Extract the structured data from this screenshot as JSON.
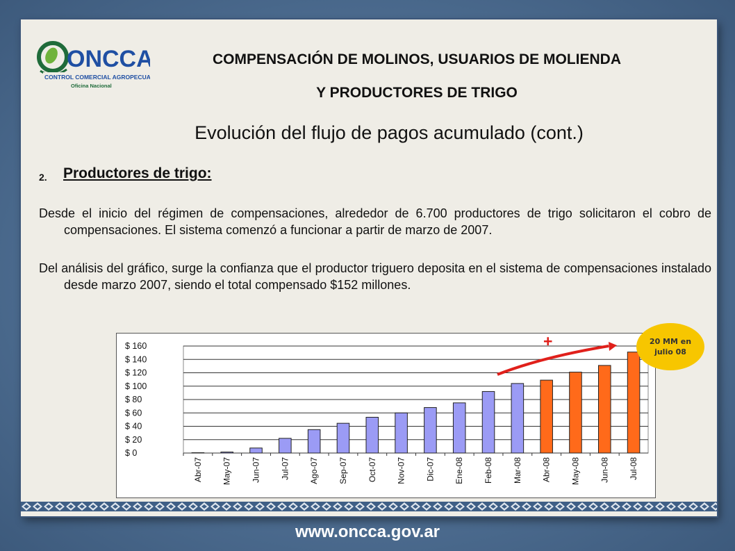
{
  "header": {
    "logo_text": "ONCCA",
    "logo_line1": "CONTROL COMERCIAL AGROPECUARIO",
    "logo_line2": "Oficina Nacional",
    "title_line1": "COMPENSACIÓN DE MOLINOS, USUARIOS DE MOLIENDA",
    "title_line2": "Y PRODUCTORES DE TRIGO"
  },
  "subtitle": "Evolución del flujo de pagos acumulado (cont.)",
  "section": {
    "number": "2.",
    "heading": "Productores de trigo:"
  },
  "paragraphs": [
    "Desde el inicio del régimen de compensaciones, alrededor de 6.700 productores de trigo solicitaron el cobro de compensaciones. El sistema comenzó a funcionar a partir de marzo de 2007.",
    "Del análisis del gráfico, surge la confianza que el productor triguero deposita en el sistema de compensaciones instalado desde marzo 2007, siendo el total compensado $152 millones."
  ],
  "callout": {
    "line1": "20 MM en",
    "line2": "julio 08",
    "plus": "+"
  },
  "footer": "www.oncca.gov.ar",
  "colors": {
    "bar_actual": "#9b9bf5",
    "bar_projected": "#ff6a1a",
    "arrow": "#e0201b",
    "bubble": "#f7c600"
  },
  "chart_data": {
    "type": "bar",
    "categories": [
      "Abr-07",
      "May-07",
      "Jun-07",
      "Jul-07",
      "Ago-07",
      "Sep-07",
      "Oct-07",
      "Nov-07",
      "Dic-07",
      "Ene-08",
      "Feb-08",
      "Mar-08",
      "Abr-08",
      "May-08",
      "Jun-08",
      "Jul-08"
    ],
    "values": [
      0.5,
      1.5,
      7.5,
      22,
      35,
      44.5,
      53.5,
      60,
      68,
      75,
      92,
      104,
      109,
      121,
      131,
      151
    ],
    "bar_kind": [
      "actual",
      "actual",
      "actual",
      "actual",
      "actual",
      "actual",
      "actual",
      "actual",
      "actual",
      "actual",
      "actual",
      "actual",
      "projected",
      "projected",
      "projected",
      "projected"
    ],
    "y_ticks": [
      0,
      20,
      40,
      60,
      80,
      100,
      120,
      140,
      160
    ],
    "y_tick_labels": [
      "$ 0",
      "$ 20",
      "$ 40",
      "$ 60",
      "$ 80",
      "$ 100",
      "$ 120",
      "$ 140",
      "$ 160"
    ],
    "ylim": [
      0,
      160
    ],
    "title": "",
    "xlabel": "",
    "ylabel": "",
    "grid": true
  }
}
